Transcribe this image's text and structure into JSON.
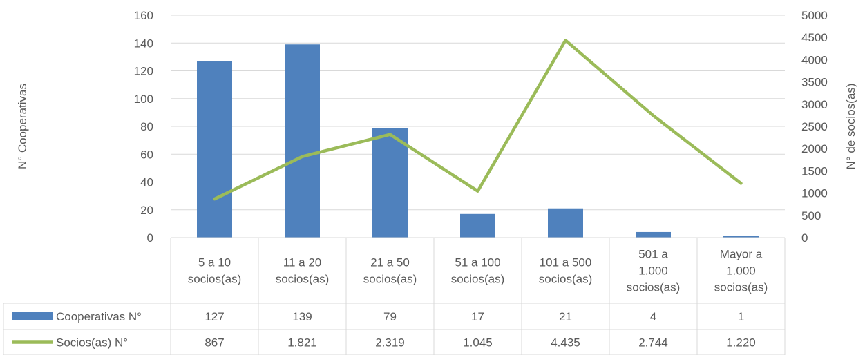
{
  "chart_data": {
    "type": "bar+line",
    "categories": [
      [
        "5 a 10",
        "socios(as)"
      ],
      [
        "11 a 20",
        "socios(as)"
      ],
      [
        "21 a 50",
        "socios(as)"
      ],
      [
        "51 a 100",
        "socios(as)"
      ],
      [
        "101 a 500",
        "socios(as)"
      ],
      [
        "501 a",
        "1.000",
        "socios(as)"
      ],
      [
        "Mayor a",
        "1.000",
        "socios(as)"
      ]
    ],
    "series": [
      {
        "name": "Cooperativas N°",
        "type": "bar",
        "axis": "left",
        "color": "#4F81BD",
        "values": [
          127,
          139,
          79,
          17,
          21,
          4,
          1
        ],
        "labels": [
          "127",
          "139",
          "79",
          "17",
          "21",
          "4",
          "1"
        ]
      },
      {
        "name": "Socios(as) N°",
        "type": "line",
        "axis": "right",
        "color": "#9BBB59",
        "values": [
          867,
          1821,
          2319,
          1045,
          4435,
          2744,
          1220
        ],
        "labels": [
          "867",
          "1.821",
          "2.319",
          "1.045",
          "4.435",
          "2.744",
          "1.220"
        ]
      }
    ],
    "ylabel_left": "N° Cooperativas",
    "ylabel_right": "N° de socios(as)",
    "ylim_left": [
      0,
      160
    ],
    "yticks_left": [
      0,
      20,
      40,
      60,
      80,
      100,
      120,
      140,
      160
    ],
    "ylim_right": [
      0,
      5000
    ],
    "yticks_right": [
      0,
      500,
      1000,
      1500,
      2000,
      2500,
      3000,
      3500,
      4000,
      4500,
      5000
    ],
    "grid": true,
    "legend": "data-table-bottom"
  }
}
